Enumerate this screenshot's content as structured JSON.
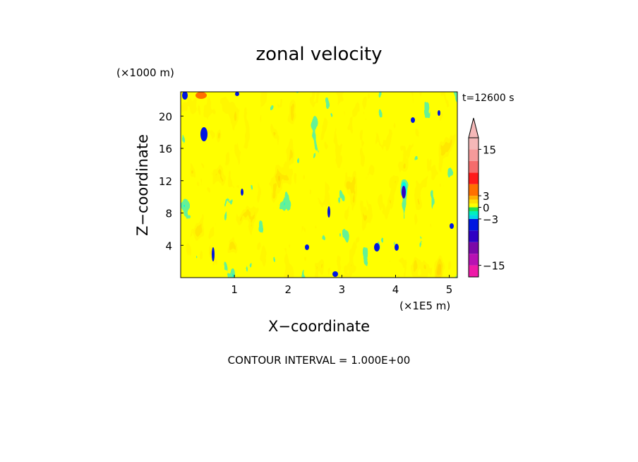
{
  "chart_data": {
    "type": "heatmap",
    "title": "zonal velocity",
    "xlabel": "X−coordinate",
    "ylabel": "Z−coordinate",
    "x_unit_label": "(×1E5 m)",
    "y_unit_label": "(×1000 m)",
    "time_label": "t=12600 s",
    "footer": "CONTOUR INTERVAL = 1.000E+00",
    "xlim": [
      0,
      5.15
    ],
    "ylim": [
      0,
      23
    ],
    "x_ticks": [
      1,
      2,
      3,
      4,
      5
    ],
    "x_tick_labels": [
      "1",
      "2",
      "3",
      "4",
      "5"
    ],
    "y_ticks": [
      4,
      8,
      12,
      16,
      20
    ],
    "y_tick_labels": [
      "4",
      "8",
      "12",
      "16",
      "20"
    ],
    "colorbar": {
      "levels": [
        -18,
        -15,
        -12,
        -9,
        -6,
        -3,
        -2,
        -1,
        0,
        1,
        2,
        3,
        6,
        9,
        12,
        15,
        18
      ],
      "colors": [
        "#ee1aa8",
        "#b811b3",
        "#7c08a8",
        "#2f00c4",
        "#0016e0",
        "#00d8e8",
        "#00f0c0",
        "#22e050",
        "#ffff00",
        "#ffe000",
        "#ffb000",
        "#ff7000",
        "#ff1a1a",
        "#f56c6c",
        "#f59a9a",
        "#f5b8b8"
      ],
      "extend_color": "#f5b8b8",
      "tick_values": [
        15,
        3,
        0,
        -3,
        -15
      ],
      "tick_labels": [
        "15",
        "3",
        "0",
        "−3",
        "−15"
      ]
    }
  }
}
